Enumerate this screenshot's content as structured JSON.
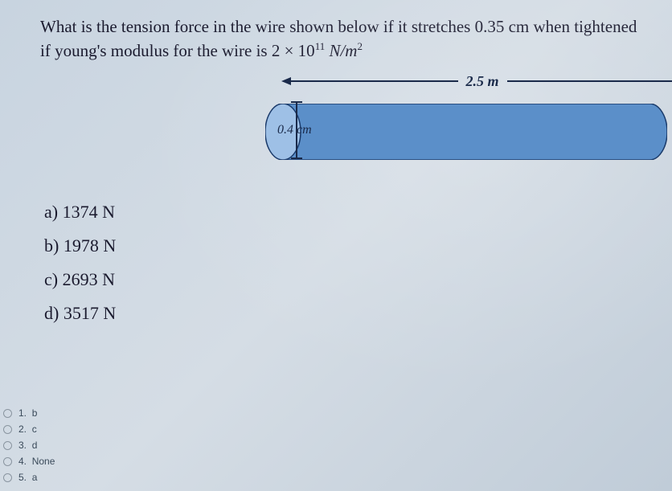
{
  "question": {
    "text_html": "What is the tension force in the wire shown below if it stretches 0.35 cm when tightened if young's modulus for the wire is 2 × 10<sup>11</sup> <i>N/m</i><sup>2</sup>"
  },
  "diagram": {
    "length_label": "2.5 m",
    "diameter_label": "0.4 cm",
    "cylinder_body_fill": "#5b8fc9",
    "cylinder_body_stroke": "#1a3a6a",
    "cylinder_cap_fill": "#9ec0e6",
    "cylinder_cap_stroke": "#1a3a6a"
  },
  "answers": [
    {
      "letter": "a)",
      "value": "1374 N"
    },
    {
      "letter": "b)",
      "value": "1978 N"
    },
    {
      "letter": "c)",
      "value": "2693 N"
    },
    {
      "letter": "d)",
      "value": "3517 N"
    }
  ],
  "choices": [
    {
      "num": "1.",
      "label": "b"
    },
    {
      "num": "2.",
      "label": "c"
    },
    {
      "num": "3.",
      "label": "d"
    },
    {
      "num": "4.",
      "label": "None"
    },
    {
      "num": "5.",
      "label": "a"
    }
  ]
}
